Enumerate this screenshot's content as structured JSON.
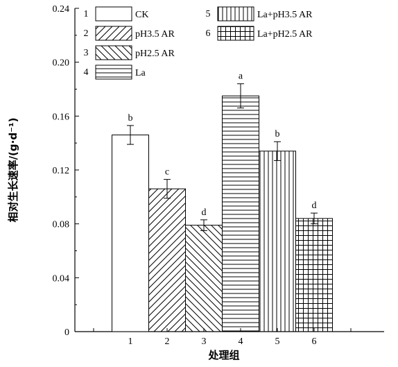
{
  "chart_data": {
    "type": "bar",
    "categories": [
      "1",
      "2",
      "3",
      "4",
      "5",
      "6"
    ],
    "series": [
      {
        "values": [
          0.146,
          0.106,
          0.079,
          0.175,
          0.134,
          0.084
        ],
        "errors": [
          0.007,
          0.007,
          0.004,
          0.009,
          0.007,
          0.004
        ],
        "significance": [
          "b",
          "c",
          "d",
          "a",
          "b",
          "d"
        ]
      }
    ],
    "legend": [
      {
        "num": "1",
        "label": "CK",
        "pattern": "none"
      },
      {
        "num": "2",
        "label": "pH3.5 AR",
        "pattern": "diag-up"
      },
      {
        "num": "3",
        "label": "pH2.5 AR",
        "pattern": "diag-down"
      },
      {
        "num": "4",
        "label": "La",
        "pattern": "horizontal"
      },
      {
        "num": "5",
        "label": "La+pH3.5 AR",
        "pattern": "vertical"
      },
      {
        "num": "6",
        "label": "La+pH2.5 AR",
        "pattern": "grid"
      }
    ],
    "legend_placement": "top",
    "xlabel": "处理组",
    "ylabel": "相对生长速率/(g·d⁻¹)",
    "ylim": [
      0,
      0.24
    ],
    "yticks": [
      "0",
      "0.04",
      "0.08",
      "0.12",
      "0.16",
      "0.20",
      "0.24"
    ],
    "grid": false
  }
}
